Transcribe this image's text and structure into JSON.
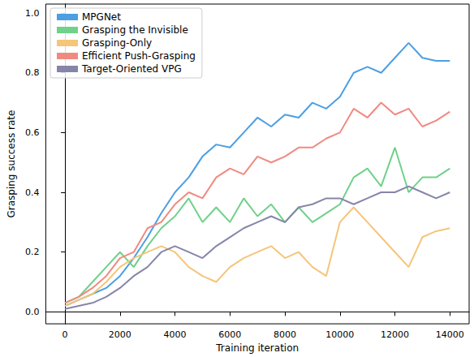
{
  "chart_data": {
    "type": "line",
    "x_label": "Training iteration",
    "y_label": "Grasping success rate",
    "x": [
      0,
      500,
      1000,
      1500,
      2000,
      2500,
      3000,
      3500,
      4000,
      4500,
      5000,
      5500,
      6000,
      6500,
      7000,
      7500,
      8000,
      8500,
      9000,
      9500,
      10000,
      10500,
      11000,
      11500,
      12000,
      12500,
      13000,
      13500,
      14000
    ],
    "series": [
      {
        "name": "MPGNet",
        "color": "#4c9fe3",
        "values": [
          0.02,
          0.04,
          0.06,
          0.08,
          0.12,
          0.18,
          0.25,
          0.33,
          0.4,
          0.45,
          0.52,
          0.56,
          0.55,
          0.6,
          0.65,
          0.62,
          0.66,
          0.65,
          0.7,
          0.68,
          0.72,
          0.8,
          0.82,
          0.8,
          0.85,
          0.9,
          0.85,
          0.84,
          0.84
        ]
      },
      {
        "name": "Grasping the Invisible",
        "color": "#6fd18a",
        "values": [
          0.03,
          0.05,
          0.1,
          0.15,
          0.2,
          0.15,
          0.22,
          0.28,
          0.32,
          0.38,
          0.3,
          0.35,
          0.3,
          0.38,
          0.32,
          0.36,
          0.3,
          0.35,
          0.3,
          0.33,
          0.36,
          0.45,
          0.48,
          0.42,
          0.55,
          0.4,
          0.45,
          0.45,
          0.48
        ]
      },
      {
        "name": "Grasping-Only",
        "color": "#f5c57a",
        "values": [
          0.02,
          0.04,
          0.06,
          0.1,
          0.15,
          0.18,
          0.2,
          0.22,
          0.2,
          0.15,
          0.12,
          0.1,
          0.15,
          0.18,
          0.2,
          0.22,
          0.18,
          0.2,
          0.15,
          0.12,
          0.3,
          0.35,
          0.3,
          0.25,
          0.2,
          0.15,
          0.25,
          0.27,
          0.28
        ]
      },
      {
        "name": "Efficient Push-Grasping",
        "color": "#f08a80",
        "values": [
          0.03,
          0.05,
          0.08,
          0.12,
          0.18,
          0.2,
          0.28,
          0.3,
          0.36,
          0.4,
          0.38,
          0.45,
          0.48,
          0.46,
          0.52,
          0.5,
          0.52,
          0.55,
          0.55,
          0.58,
          0.6,
          0.68,
          0.65,
          0.7,
          0.66,
          0.68,
          0.62,
          0.64,
          0.67
        ]
      },
      {
        "name": "Target-Oriented VPG",
        "color": "#8585aa",
        "values": [
          0.01,
          0.02,
          0.03,
          0.05,
          0.08,
          0.12,
          0.15,
          0.2,
          0.22,
          0.2,
          0.18,
          0.22,
          0.25,
          0.28,
          0.3,
          0.32,
          0.3,
          0.35,
          0.36,
          0.38,
          0.38,
          0.36,
          0.38,
          0.4,
          0.4,
          0.42,
          0.4,
          0.38,
          0.4
        ]
      }
    ],
    "xlim": [
      -700,
      14700
    ],
    "xticks": [
      0,
      2000,
      4000,
      6000,
      8000,
      10000,
      12000,
      14000
    ],
    "ylim": [
      -0.04,
      1.03
    ],
    "yticks": [
      {
        "value": 0,
        "label": "0.0"
      },
      {
        "value": 0.2,
        "label": "0.2"
      },
      {
        "value": 0.4,
        "label": "0.4"
      },
      {
        "value": 0.6,
        "label": "0.6"
      },
      {
        "value": 0.8,
        "label": "0.8"
      },
      {
        "value": 1,
        "label": "1.0"
      }
    ],
    "grid": false,
    "legend": "upper left"
  }
}
